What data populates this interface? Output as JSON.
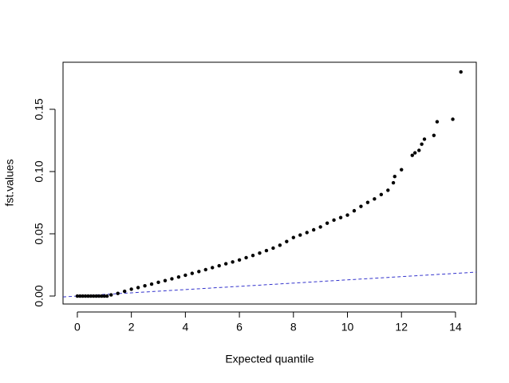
{
  "chart_data": {
    "type": "scatter",
    "xlabel": "Expected quantile",
    "ylabel": "fst.values",
    "xlim": [
      -0.53,
      14.77
    ],
    "ylim": [
      -0.0064,
      0.1878
    ],
    "xticks": [
      0,
      2,
      4,
      6,
      8,
      10,
      12,
      14
    ],
    "yticks": [
      {
        "value": 0,
        "label": "0.00"
      },
      {
        "value": 0.05,
        "label": "0.05"
      },
      {
        "value": 0.1,
        "label": "0.10"
      },
      {
        "value": 0.15,
        "label": "0.15"
      }
    ],
    "color": "#000000",
    "x": [
      0,
      0.1,
      0.2,
      0.3,
      0.4,
      0.5,
      0.6,
      0.7,
      0.8,
      0.9,
      1.0,
      1.1,
      1.25,
      1.5,
      1.75,
      2,
      2.25,
      2.5,
      2.75,
      3,
      3.25,
      3.5,
      3.75,
      4,
      4.25,
      4.5,
      4.75,
      5,
      5.25,
      5.5,
      5.75,
      6,
      6.25,
      6.5,
      6.75,
      7,
      7.25,
      7.5,
      7.75,
      8,
      8.25,
      8.5,
      8.75,
      9,
      9.25,
      9.5,
      9.75,
      10,
      10.25,
      10.5,
      10.75,
      11,
      11.25,
      11.5,
      11.7,
      11.75,
      12,
      12.4,
      12.5,
      12.65,
      12.75,
      12.85,
      13.2,
      13.32,
      13.9,
      14.2
    ],
    "y": [
      0,
      0,
      0,
      0,
      0,
      0,
      0,
      0,
      0,
      0,
      0,
      0,
      0.0009,
      0.0021,
      0.0038,
      0.0055,
      0.0068,
      0.0082,
      0.0096,
      0.011,
      0.0124,
      0.0138,
      0.0153,
      0.0167,
      0.0182,
      0.0197,
      0.0212,
      0.0228,
      0.0243,
      0.0259,
      0.0274,
      0.029,
      0.0308,
      0.0326,
      0.0345,
      0.0365,
      0.0385,
      0.0408,
      0.0438,
      0.047,
      0.049,
      0.051,
      0.0532,
      0.0555,
      0.0585,
      0.061,
      0.063,
      0.065,
      0.0685,
      0.072,
      0.0752,
      0.078,
      0.0815,
      0.085,
      0.091,
      0.096,
      0.1015,
      0.113,
      0.115,
      0.117,
      0.122,
      0.126,
      0.129,
      0.14,
      0.142,
      0.18
    ],
    "ref_line": {
      "x": [
        -0.53,
        14.77
      ],
      "y": [
        -0.0007,
        0.0192
      ],
      "color": "#3333cc"
    }
  }
}
